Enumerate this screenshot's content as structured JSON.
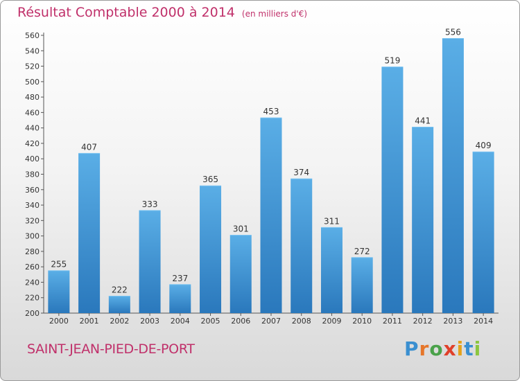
{
  "header": {
    "title": "Résultat Comptable 2000 à 2014",
    "subtitle": "(en milliers d'€)"
  },
  "footer": {
    "commune": "SAINT-JEAN-PIED-DE-PORT",
    "logo_text": "Proxiti"
  },
  "colors": {
    "title": "#c0306a",
    "bar_top": "#5aaee6",
    "bar_bottom": "#2a78bc"
  },
  "chart_data": {
    "type": "bar",
    "title": "Résultat Comptable 2000 à 2014",
    "subtitle": "(en milliers d'€)",
    "xlabel": "",
    "ylabel": "",
    "categories": [
      "2000",
      "2001",
      "2002",
      "2003",
      "2004",
      "2005",
      "2006",
      "2007",
      "2008",
      "2009",
      "2010",
      "2011",
      "2012",
      "2013",
      "2014"
    ],
    "values": [
      255,
      407,
      222,
      333,
      237,
      365,
      301,
      453,
      374,
      311,
      272,
      519,
      441,
      556,
      409
    ],
    "ylim": [
      200,
      560
    ],
    "yticks": [
      200,
      220,
      240,
      260,
      280,
      300,
      320,
      340,
      360,
      380,
      400,
      420,
      440,
      460,
      480,
      500,
      520,
      540,
      560
    ],
    "grid": false,
    "legend": "none"
  }
}
